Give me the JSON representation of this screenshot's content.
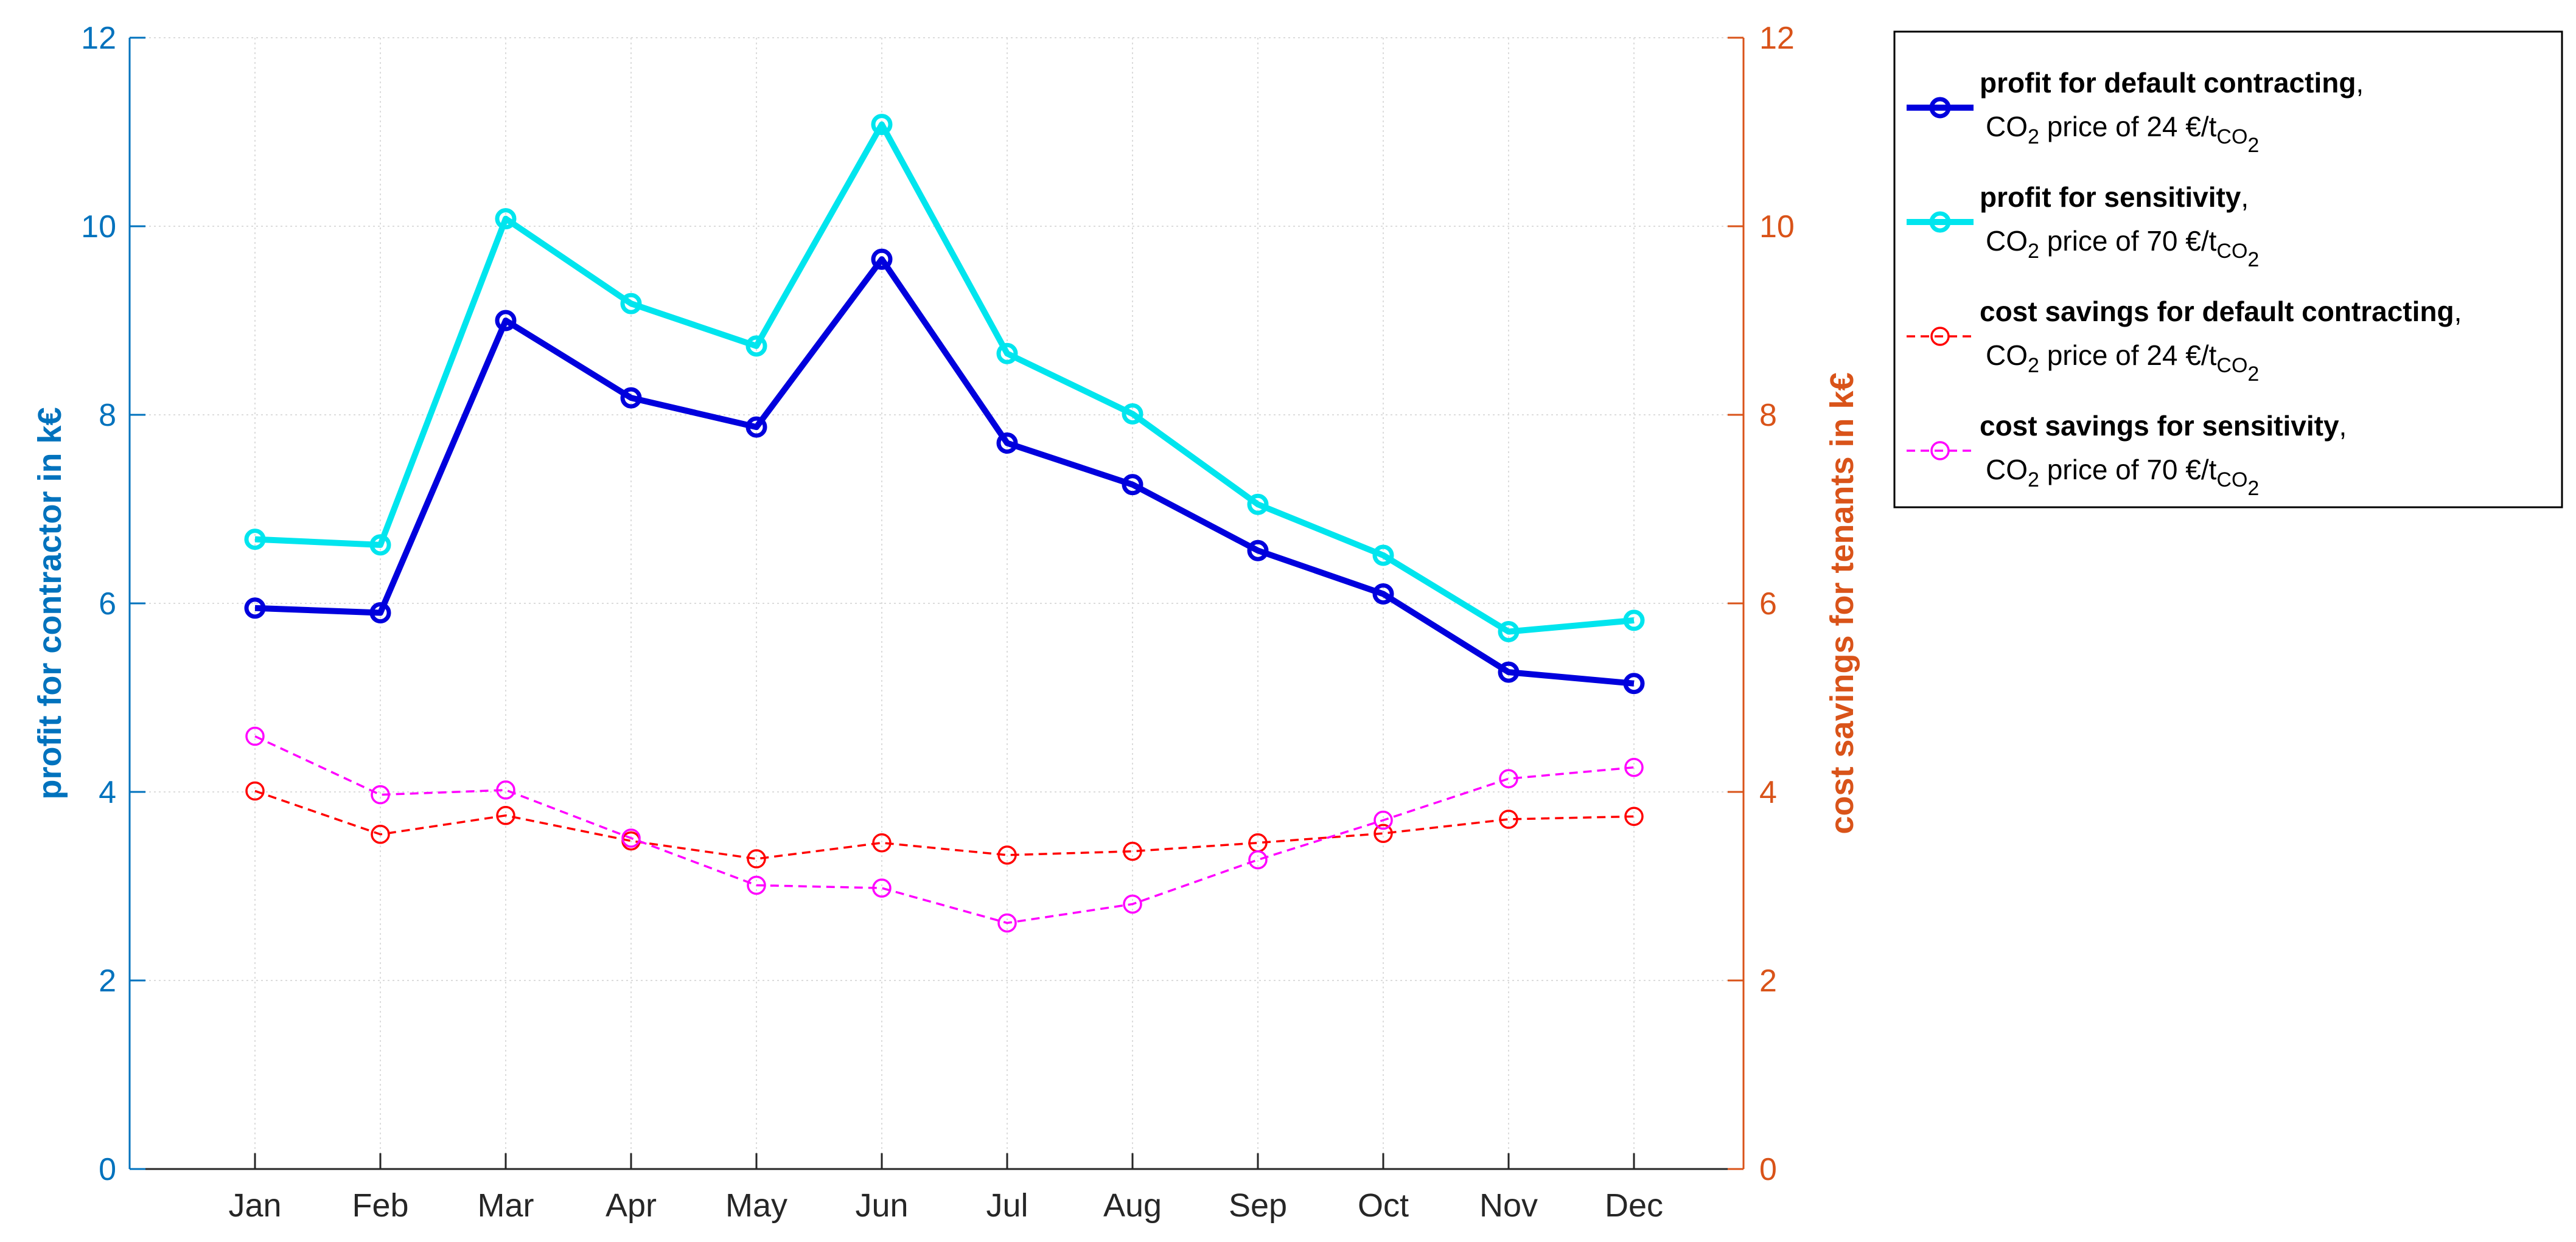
{
  "chart_data": {
    "type": "line",
    "categories": [
      "Jan",
      "Feb",
      "Mar",
      "Apr",
      "May",
      "Jun",
      "Jul",
      "Aug",
      "Sep",
      "Oct",
      "Nov",
      "Dec"
    ],
    "y_left": {
      "label": "profit for contractor in k€",
      "range": [
        0,
        12
      ],
      "ticks": [
        "0",
        "2",
        "4",
        "6",
        "8",
        "10",
        "12"
      ],
      "color": "#0072BD"
    },
    "y_right": {
      "label": "cost savings for tenants in k€",
      "range": [
        0,
        12
      ],
      "ticks": [
        "0",
        "2",
        "4",
        "6",
        "8",
        "10",
        "12"
      ],
      "color": "#D95319"
    },
    "grid": true,
    "legend_position": "outside-right-top",
    "series": [
      {
        "name": "profit for default contracting",
        "axis": "left",
        "style": "solid-thick",
        "color": "#0000DD",
        "legend_bold": "profit for default contracting",
        "legend_comma": ",",
        "legend_line2": {
          "a": "CO",
          "a_sub": "2",
          "b": " price of 24 €/t",
          "b_sub": "CO",
          "c_sub": "2"
        },
        "values": [
          5.95,
          5.9,
          9.0,
          8.18,
          7.87,
          9.65,
          7.7,
          7.26,
          6.56,
          6.1,
          5.27,
          5.15
        ]
      },
      {
        "name": "profit for sensitivity",
        "axis": "left",
        "style": "solid-thick",
        "color": "#00E5EE",
        "legend_bold": "profit for sensitivity",
        "legend_comma": ",",
        "legend_line2": {
          "a": "CO",
          "a_sub": "2",
          "b": " price of 70 €/t",
          "b_sub": "CO",
          "c_sub": "2"
        },
        "values": [
          6.68,
          6.62,
          10.08,
          9.18,
          8.73,
          11.08,
          8.65,
          8.01,
          7.05,
          6.51,
          5.7,
          5.82
        ]
      },
      {
        "name": "cost savings for default contracting",
        "axis": "right",
        "style": "dashed-thin",
        "color": "#FF0000",
        "legend_bold": "cost savings for default contracting",
        "legend_comma": ",",
        "legend_line2": {
          "a": "CO",
          "a_sub": "2",
          "b": " price of 24 €/t",
          "b_sub": "CO",
          "c_sub": "2"
        },
        "values": [
          4.01,
          3.55,
          3.75,
          3.48,
          3.29,
          3.46,
          3.33,
          3.37,
          3.46,
          3.56,
          3.71,
          3.74
        ]
      },
      {
        "name": "cost savings for sensitivity",
        "axis": "right",
        "style": "dashed-thin",
        "color": "#FF00FF",
        "legend_bold": "cost savings for sensitivity",
        "legend_comma": ",",
        "legend_line2": {
          "a": "CO",
          "a_sub": "2",
          "b": " price of 70 €/t",
          "b_sub": "CO",
          "c_sub": "2"
        },
        "values": [
          4.59,
          3.97,
          4.02,
          3.51,
          3.01,
          2.98,
          2.61,
          2.81,
          3.28,
          3.7,
          4.14,
          4.26
        ]
      }
    ]
  }
}
